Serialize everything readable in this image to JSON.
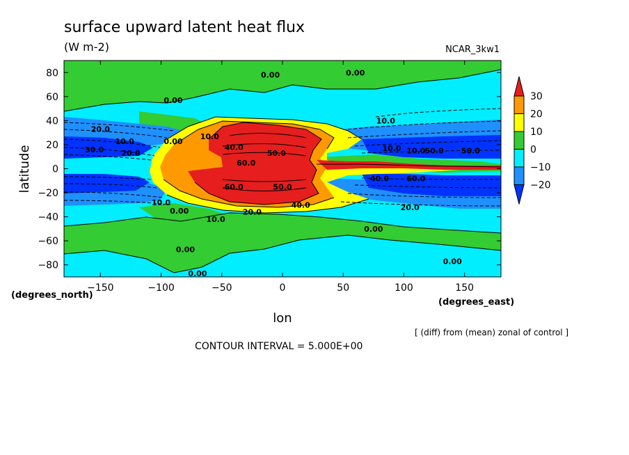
{
  "chart_data": {
    "type": "heatmap",
    "title": "surface upward latent heat flux",
    "units": "(W m-2)",
    "model": "NCAR_3kw1",
    "xlabel": "lon",
    "ylabel": "latitude",
    "x_unit_label": "(degrees_east)",
    "y_unit_label": "(degrees_north)",
    "xlim": [
      -180,
      180
    ],
    "ylim": [
      -90,
      90
    ],
    "x_ticks": [
      "−150",
      "−100",
      "−50",
      "0",
      "50",
      "100",
      "150"
    ],
    "x_tick_values": [
      -150,
      -100,
      -50,
      0,
      50,
      100,
      150
    ],
    "y_ticks": [
      "80",
      "60",
      "40",
      "20",
      "0",
      "−20",
      "−40",
      "−60",
      "−80"
    ],
    "y_tick_values": [
      80,
      60,
      40,
      20,
      0,
      -20,
      -40,
      -60,
      -80
    ],
    "note": "[ (diff) from (mean) zonal of control ]",
    "contour_interval": "CONTOUR INTERVAL = 5.000E+00",
    "colorbar": {
      "labels": [
        "30",
        "20",
        "10",
        "0",
        "−10",
        "−20"
      ],
      "levels": [
        30,
        20,
        10,
        0,
        -10,
        -20
      ],
      "colors": [
        "#e61e1e",
        "#ff9900",
        "#ffff00",
        "#33cc33",
        "#00eeff",
        "#1e90ff",
        "#0033ff"
      ]
    },
    "contour_labels": [
      {
        "text": "0.00",
        "lon": -10,
        "lat": 78
      },
      {
        "text": "0.00",
        "lon": 60,
        "lat": 80
      },
      {
        "text": "0.00",
        "lon": -90,
        "lat": 57
      },
      {
        "text": "10.0",
        "lon": 85,
        "lat": 40
      },
      {
        "text": "20.0",
        "lon": -150,
        "lat": 33
      },
      {
        "text": "10.0",
        "lon": -130,
        "lat": 23
      },
      {
        "text": "0.00",
        "lon": -90,
        "lat": 23
      },
      {
        "text": "10.0",
        "lon": -60,
        "lat": 27
      },
      {
        "text": "40.0",
        "lon": -40,
        "lat": 18
      },
      {
        "text": "60.0",
        "lon": -30,
        "lat": 5
      },
      {
        "text": "50.0",
        "lon": -5,
        "lat": 13
      },
      {
        "text": "30.0",
        "lon": -155,
        "lat": 16
      },
      {
        "text": "20.0",
        "lon": -125,
        "lat": 13
      },
      {
        "text": "10.0",
        "lon": 90,
        "lat": 17
      },
      {
        "text": "10.0",
        "lon": 110,
        "lat": 15
      },
      {
        "text": "50.0",
        "lon": 125,
        "lat": 15
      },
      {
        "text": "50.0",
        "lon": 155,
        "lat": 15
      },
      {
        "text": "60.0",
        "lon": -40,
        "lat": -15
      },
      {
        "text": "50.0",
        "lon": 0,
        "lat": -15
      },
      {
        "text": "60.0",
        "lon": 110,
        "lat": -8
      },
      {
        "text": "40.0",
        "lon": 80,
        "lat": -8
      },
      {
        "text": "10.0",
        "lon": -100,
        "lat": -28
      },
      {
        "text": "0.00",
        "lon": -85,
        "lat": -35
      },
      {
        "text": "20.0",
        "lon": -25,
        "lat": -36
      },
      {
        "text": "10.0",
        "lon": -55,
        "lat": -42
      },
      {
        "text": "40.0",
        "lon": 15,
        "lat": -30
      },
      {
        "text": "20.0",
        "lon": 105,
        "lat": -32
      },
      {
        "text": "0.00",
        "lon": 75,
        "lat": -50
      },
      {
        "text": "0.00",
        "lon": -80,
        "lat": -67
      },
      {
        "text": "0.00",
        "lon": 140,
        "lat": -77
      },
      {
        "text": "0.00",
        "lon": -70,
        "lat": -87
      }
    ]
  }
}
